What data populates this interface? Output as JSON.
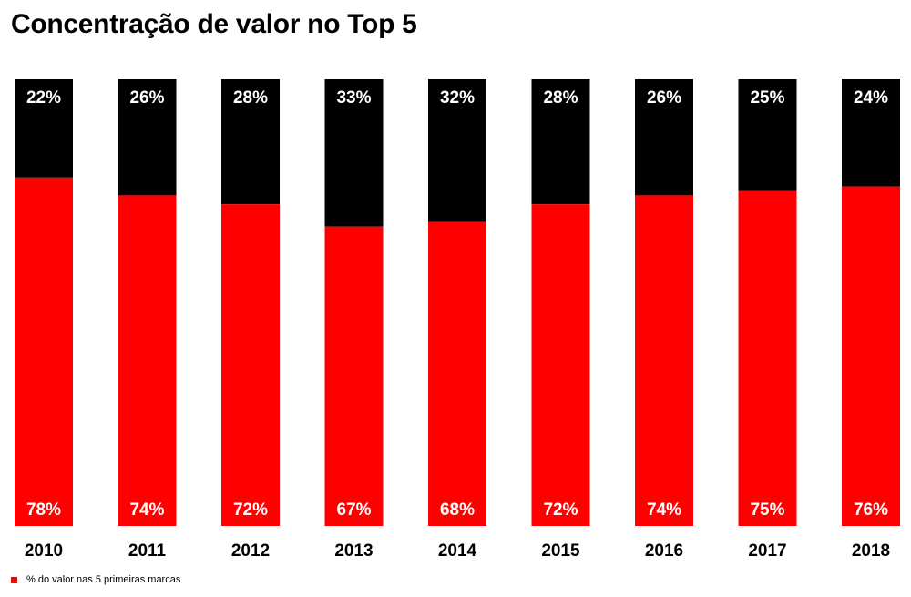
{
  "title": "Concentração de valor no Top 5",
  "colors": {
    "top5": "#ff0000",
    "rest": "#000000",
    "bar_label": "#ffffff",
    "axis_label": "#000000"
  },
  "legend": {
    "label": "% do valor nas 5 primeiras marcas"
  },
  "chart_data": {
    "type": "bar",
    "stacked": true,
    "normalized_percent": true,
    "categories": [
      "2010",
      "2011",
      "2012",
      "2013",
      "2014",
      "2015",
      "2016",
      "2017",
      "2018"
    ],
    "series": [
      {
        "name": "% do valor nas 5 primeiras marcas",
        "color": "#ff0000",
        "values": [
          78,
          74,
          72,
          67,
          68,
          72,
          74,
          75,
          76
        ],
        "labels": [
          "78%",
          "74%",
          "72%",
          "67%",
          "68%",
          "72%",
          "74%",
          "75%",
          "76%"
        ]
      },
      {
        "color": "#000000",
        "values": [
          22,
          26,
          28,
          33,
          32,
          28,
          26,
          25,
          24
        ],
        "labels": [
          "22%",
          "26%",
          "28%",
          "33%",
          "32%",
          "28%",
          "26%",
          "25%",
          "24%"
        ]
      }
    ],
    "ylim": [
      0,
      100
    ],
    "grid": false,
    "legend_position": "bottom-left"
  }
}
